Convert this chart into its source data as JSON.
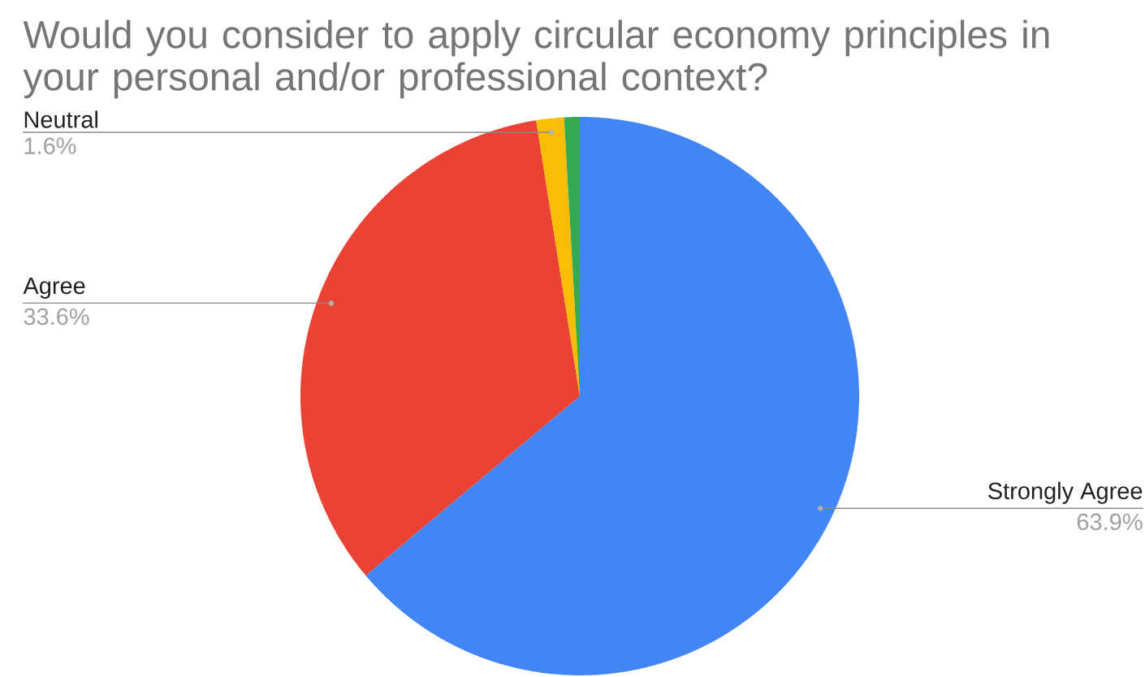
{
  "chart_data": {
    "type": "pie",
    "title": "Would you consider to apply circular economy principles in your personal and/or professional context?",
    "categories": [
      "Strongly Agree",
      "Agree",
      "Neutral",
      null
    ],
    "values": [
      63.9,
      33.6,
      1.6,
      0.9
    ],
    "colors": [
      "#4285f4",
      "#ea4335",
      "#fbbc04",
      "#34a853"
    ],
    "value_labels": [
      "63.9%",
      "33.6%",
      "1.6%",
      null
    ]
  }
}
